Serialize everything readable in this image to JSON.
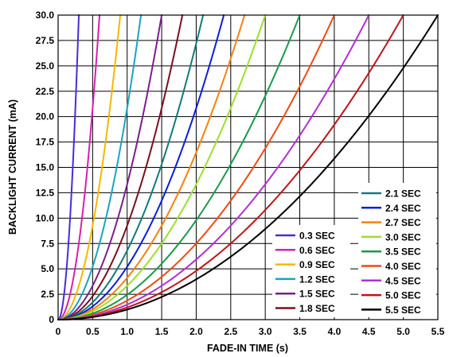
{
  "chart_data": {
    "type": "line",
    "xlabel": "FADE-IN TIME (s)",
    "ylabel": "BACKLIGHT CURRENT (mA)",
    "xlim": [
      0,
      5.5
    ],
    "ylim": [
      0,
      30
    ],
    "xticks": [
      "0",
      "0.5",
      "1.0",
      "1.5",
      "2.0",
      "2.5",
      "3.0",
      "3.5",
      "4.0",
      "4.5",
      "5.0",
      "5.5"
    ],
    "yticks": [
      "0",
      "2.5",
      "5.0",
      "7.5",
      "10.0",
      "12.5",
      "15.0",
      "17.5",
      "20.0",
      "22.5",
      "25.0",
      "27.5",
      "30.0"
    ],
    "grid": true,
    "curve_model": "y = 30 * (x / T)^2, x from 0 to T",
    "series": [
      {
        "name": "0.3 SEC",
        "fade_time": 0.3,
        "color": "#4a2bd8"
      },
      {
        "name": "0.6 SEC",
        "fade_time": 0.6,
        "color": "#d81fb0"
      },
      {
        "name": "0.9 SEC",
        "fade_time": 0.9,
        "color": "#f5b800"
      },
      {
        "name": "1.2 SEC",
        "fade_time": 1.2,
        "color": "#1ba3c0"
      },
      {
        "name": "1.5 SEC",
        "fade_time": 1.5,
        "color": "#7b1e8c"
      },
      {
        "name": "1.8 SEC",
        "fade_time": 1.8,
        "color": "#7a1020"
      },
      {
        "name": "2.1 SEC",
        "fade_time": 2.1,
        "color": "#127a78"
      },
      {
        "name": "2.4 SEC",
        "fade_time": 2.4,
        "color": "#0a1fd8"
      },
      {
        "name": "2.7 SEC",
        "fade_time": 2.7,
        "color": "#f5820f"
      },
      {
        "name": "3.0 SEC",
        "fade_time": 3.0,
        "color": "#9be02a"
      },
      {
        "name": "3.5 SEC",
        "fade_time": 3.5,
        "color": "#1a9a4a"
      },
      {
        "name": "4.0 SEC",
        "fade_time": 4.0,
        "color": "#ef4a12"
      },
      {
        "name": "4.5 SEC",
        "fade_time": 4.5,
        "color": "#b22fd6"
      },
      {
        "name": "5.0 SEC",
        "fade_time": 5.0,
        "color": "#c01418"
      },
      {
        "name": "5.5 SEC",
        "fade_time": 5.5,
        "color": "#000000"
      }
    ],
    "legend_columns": [
      [
        "0.3 SEC",
        "0.6 SEC",
        "0.9 SEC",
        "1.2 SEC",
        "1.5 SEC",
        "1.8 SEC"
      ],
      [
        "2.1 SEC",
        "2.4 SEC",
        "2.7 SEC",
        "3.0 SEC",
        "3.5 SEC",
        "4.0 SEC",
        "4.5 SEC",
        "5.0 SEC",
        "5.5 SEC"
      ]
    ],
    "legend_position": "bottom-right"
  }
}
